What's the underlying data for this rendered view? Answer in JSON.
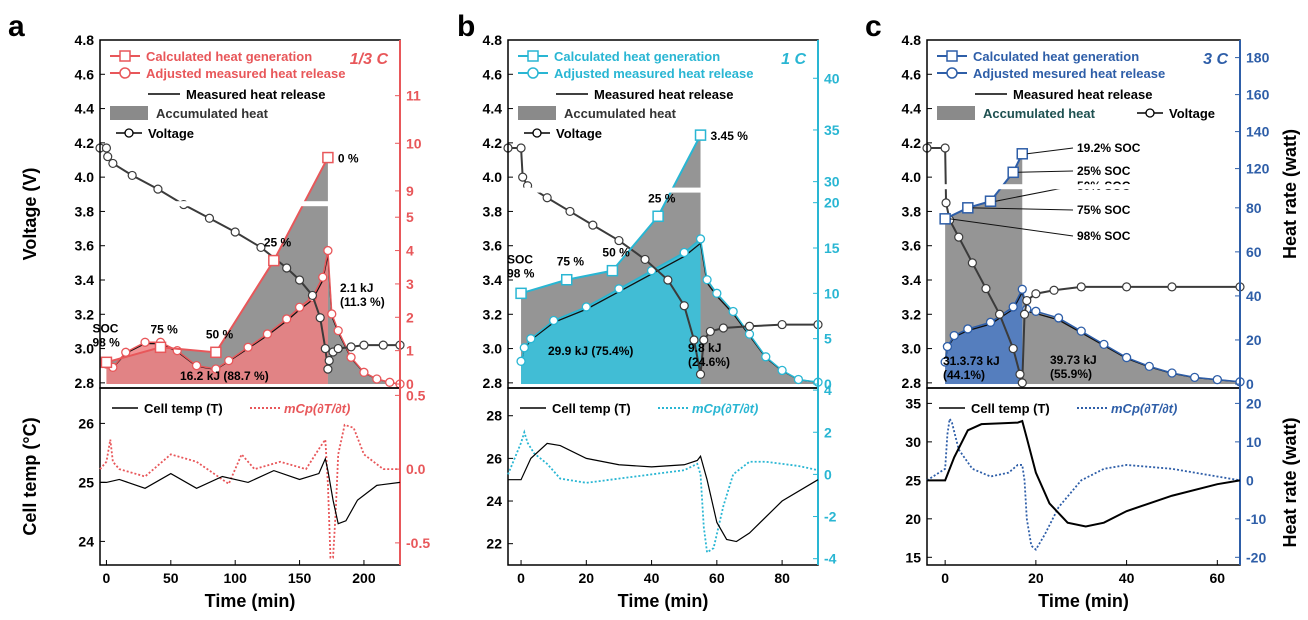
{
  "colors": {
    "a": "#e8575a",
    "a_fill": "#ef8082",
    "b": "#29b6d3",
    "b_fill": "#33c4e0",
    "c": "#2e5ea8",
    "c_fill": "#4a7ac6",
    "gray": "#8a8a8a",
    "gray_dark": "#3b3b3b"
  },
  "chart_data": [
    {
      "panel": "a",
      "type": "line",
      "rate_label": "1/3 C",
      "xlabel": "Time (min)",
      "xlim": [
        -5,
        228
      ],
      "xticks": [
        "0",
        "50",
        "100",
        "150",
        "200"
      ],
      "top": {
        "ylabel_left": "Voltage (V)",
        "ylim_left": [
          2.77,
          4.8
        ],
        "yticks_left": [
          "2.8",
          "3.0",
          "3.2",
          "3.4",
          "3.6",
          "3.8",
          "4.0",
          "4.2",
          "4.4",
          "4.6",
          "4.8"
        ],
        "yticks_right": [
          "0",
          "1",
          "2",
          "3",
          "4",
          "5",
          "9",
          "10",
          "11"
        ],
        "legend": [
          "Calculated heat generation",
          "Adjusted measured heat release",
          "Measured heat release",
          "Accumulated heat",
          "Voltage"
        ],
        "voltage": {
          "x": [
            -5,
            0,
            1,
            5,
            20,
            40,
            60,
            80,
            100,
            120,
            140,
            150,
            160,
            166,
            170,
            172,
            173,
            176,
            180,
            190,
            200,
            215,
            228
          ],
          "y": [
            4.17,
            4.17,
            4.12,
            4.08,
            4.01,
            3.93,
            3.84,
            3.76,
            3.68,
            3.59,
            3.47,
            3.4,
            3.31,
            3.18,
            3.0,
            2.88,
            2.93,
            2.98,
            3.0,
            3.01,
            3.02,
            3.02,
            3.02
          ]
        },
        "calculated_heat": {
          "x": [
            0,
            42,
            85,
            130,
            172
          ],
          "y": [
            0.65,
            1.1,
            0.95,
            3.7,
            9.7
          ],
          "labels": [
            "SOC\n98 %",
            "75 %",
            "50 %",
            "25 %",
            "0 %"
          ]
        },
        "adjusted_measured_heat": {
          "x": [
            0,
            5,
            15,
            30,
            42,
            55,
            70,
            85,
            95,
            110,
            125,
            140,
            150,
            160,
            168,
            172,
            175,
            180,
            190,
            200,
            210,
            220,
            228
          ],
          "y": [
            0.6,
            0.5,
            0.95,
            1.25,
            1.25,
            1.0,
            0.55,
            0.45,
            0.7,
            1.1,
            1.5,
            1.95,
            2.3,
            2.6,
            3.2,
            4.0,
            2.1,
            1.6,
            0.8,
            0.35,
            0.15,
            0.05,
            0.0
          ]
        },
        "annotations": [
          "16.2 kJ (88.7 %)",
          "2.1 kJ\n(11.3 %)"
        ]
      },
      "bottom": {
        "ylabel_left": "Cell temp (°C)",
        "ylim_left": [
          23.6,
          26.6
        ],
        "yticks_left": [
          "24",
          "25",
          "26"
        ],
        "ylim_right": [
          -0.65,
          0.55
        ],
        "yticks_right": [
          "-0.5",
          "0.0",
          "0.5"
        ],
        "legend": [
          "Cell temp (T)",
          "mCp(∂T/∂t)"
        ],
        "cell_temp": {
          "x": [
            -5,
            0,
            10,
            30,
            50,
            70,
            90,
            110,
            130,
            150,
            165,
            170,
            172,
            176,
            180,
            186,
            195,
            210,
            228
          ],
          "y": [
            25.0,
            25.0,
            25.05,
            24.9,
            25.15,
            24.9,
            25.1,
            25.0,
            25.2,
            25.05,
            25.15,
            25.4,
            25.2,
            24.7,
            24.3,
            24.35,
            24.7,
            24.95,
            25.0
          ]
        },
        "heat_rate": {
          "x": [
            -5,
            0,
            3,
            5,
            10,
            30,
            50,
            70,
            95,
            105,
            115,
            135,
            155,
            166,
            170,
            172,
            174,
            176,
            178,
            180,
            185,
            192,
            200,
            215,
            228
          ],
          "y": [
            0.0,
            0.05,
            0.2,
            0.05,
            0.0,
            -0.05,
            0.1,
            0.05,
            -0.1,
            0.1,
            0.0,
            0.05,
            0.0,
            0.15,
            0.2,
            -0.1,
            -0.6,
            -0.6,
            -0.3,
            0.1,
            0.3,
            0.28,
            0.1,
            0.0,
            0.0
          ]
        }
      }
    },
    {
      "panel": "b",
      "type": "line",
      "rate_label": "1 C",
      "xlabel": "Time (min)",
      "xlim": [
        -4,
        91
      ],
      "xticks": [
        "0",
        "20",
        "40",
        "60",
        "80"
      ],
      "top": {
        "ylabel_left": "",
        "ylim_left": [
          2.77,
          4.8
        ],
        "yticks_left": [
          "2.8",
          "3.0",
          "3.2",
          "3.4",
          "3.6",
          "3.8",
          "4.0",
          "4.2",
          "4.4",
          "4.6",
          "4.8"
        ],
        "yticks_right": [
          "0",
          "5",
          "10",
          "15",
          "20",
          "30",
          "35",
          "40"
        ],
        "legend": [
          "Calculated heat generation",
          "Adjusted measured heat release",
          "Measured heat release",
          "Accumulated heat",
          "Voltage"
        ],
        "voltage": {
          "x": [
            -4,
            0,
            0.5,
            2,
            8,
            15,
            22,
            30,
            38,
            45,
            50,
            53,
            55,
            56,
            58,
            62,
            70,
            80,
            91
          ],
          "y": [
            4.17,
            4.17,
            4.0,
            3.95,
            3.88,
            3.8,
            3.72,
            3.63,
            3.52,
            3.4,
            3.25,
            3.05,
            2.85,
            3.05,
            3.1,
            3.12,
            3.13,
            3.14,
            3.14
          ]
        },
        "calculated_heat": {
          "x": [
            0,
            14,
            28,
            42,
            55
          ],
          "y": [
            10,
            11.5,
            12.5,
            18.5,
            34.5
          ],
          "labels": [
            "SOC\n98 %",
            "75 %",
            "50 %",
            "25 %",
            "3.45 %"
          ]
        },
        "adjusted_measured_heat": {
          "x": [
            0,
            1,
            3,
            10,
            20,
            30,
            40,
            50,
            55,
            57,
            60,
            65,
            70,
            75,
            80,
            85,
            91
          ],
          "y": [
            2.5,
            4.0,
            5.0,
            7.0,
            8.5,
            10.5,
            12.5,
            14.5,
            16.0,
            11.5,
            10.0,
            8.0,
            5.5,
            3.0,
            1.5,
            0.5,
            0.2
          ]
        },
        "annotations": [
          "29.9 kJ (75.4%)",
          "9.8 kJ\n(24.6%)"
        ]
      },
      "bottom": {
        "ylabel_left": "",
        "ylim_left": [
          21,
          29.3
        ],
        "yticks_left": [
          "22",
          "24",
          "26",
          "28"
        ],
        "ylim_right": [
          -4.3,
          4.1
        ],
        "yticks_right": [
          "-4",
          "-2",
          "0",
          "2",
          "4"
        ],
        "legend": [
          "Cell temp (T)",
          "mCp(∂T/∂t)"
        ],
        "cell_temp": {
          "x": [
            -4,
            0,
            3,
            8,
            12,
            20,
            30,
            40,
            50,
            54,
            55,
            57,
            60,
            63,
            66,
            70,
            80,
            91
          ],
          "y": [
            25.0,
            25.0,
            26.0,
            26.7,
            26.6,
            26.0,
            25.7,
            25.6,
            25.7,
            25.9,
            26.1,
            25.0,
            23.0,
            22.2,
            22.1,
            22.5,
            24.0,
            25.0
          ]
        },
        "heat_rate": {
          "x": [
            -4,
            0,
            1,
            2,
            4,
            8,
            12,
            20,
            30,
            40,
            50,
            54,
            55,
            56,
            57,
            59,
            62,
            65,
            70,
            75,
            85,
            91
          ],
          "y": [
            0.0,
            1.5,
            2.0,
            1.5,
            1.0,
            0.5,
            -0.2,
            -0.4,
            -0.2,
            0.0,
            0.2,
            0.5,
            0.0,
            -2.5,
            -3.7,
            -3.5,
            -1.5,
            0.0,
            0.6,
            0.6,
            0.4,
            0.2
          ]
        }
      }
    },
    {
      "panel": "c",
      "type": "line",
      "rate_label": "3 C",
      "xlabel": "Time (min)",
      "xlim": [
        -4,
        65
      ],
      "xticks": [
        "0",
        "20",
        "40",
        "60"
      ],
      "top": {
        "ylabel_left": "",
        "ylabel_right": "Heat rate (watt)",
        "ylim_left": [
          2.77,
          4.8
        ],
        "yticks_left": [
          "2.8",
          "3.0",
          "3.2",
          "3.4",
          "3.6",
          "3.8",
          "4.0",
          "4.2",
          "4.4",
          "4.6",
          "4.8"
        ],
        "yticks_right": [
          "0",
          "20",
          "40",
          "60",
          "80",
          "120",
          "140",
          "160",
          "180"
        ],
        "legend": [
          "Calculated heat generation",
          "Adjusted mesured heat release",
          "Measured heat release",
          "Accumulated heat",
          "Voltage"
        ],
        "voltage": {
          "x": [
            -4,
            0,
            0.2,
            1,
            3,
            6,
            9,
            12,
            15,
            16.5,
            17,
            17.5,
            18,
            20,
            24,
            30,
            40,
            50,
            65
          ],
          "y": [
            4.17,
            4.17,
            3.85,
            3.75,
            3.65,
            3.5,
            3.35,
            3.2,
            3.0,
            2.85,
            2.8,
            3.2,
            3.28,
            3.32,
            3.34,
            3.36,
            3.36,
            3.36,
            3.36
          ]
        },
        "calculated_heat": {
          "x": [
            0,
            5,
            10,
            15,
            17
          ],
          "y": [
            75,
            80,
            83,
            118,
            128
          ],
          "labels": [
            "98% SOC",
            "75% SOC",
            "50% SOC",
            "25% SOC",
            "19.2% SOC"
          ]
        },
        "adjusted_measured_heat": {
          "x": [
            0,
            0.5,
            2,
            5,
            10,
            15,
            17,
            18,
            20,
            25,
            30,
            35,
            40,
            45,
            50,
            55,
            60,
            65
          ],
          "y": [
            10,
            17,
            22,
            25,
            28,
            35,
            43,
            34,
            33,
            30,
            24,
            18,
            12,
            8,
            5,
            3,
            2,
            1
          ]
        },
        "annotations": [
          "31.3.73 kJ\n(44.1%)",
          "39.73 kJ\n(55.9%)"
        ]
      },
      "bottom": {
        "ylabel_left": "",
        "ylabel_right": "Heat rate (watt)",
        "ylim_left": [
          14,
          37
        ],
        "yticks_left": [
          "15",
          "20",
          "25",
          "30",
          "35"
        ],
        "ylim_right": [
          -22,
          24
        ],
        "yticks_right": [
          "-20",
          "-10",
          "0",
          "10",
          "20"
        ],
        "legend": [
          "Cell temp (T)",
          "mCp(∂T/∂t)"
        ],
        "cell_temp": {
          "x": [
            -4,
            0,
            2,
            5,
            8,
            12,
            16,
            17,
            18,
            20,
            23,
            27,
            31,
            35,
            40,
            50,
            60,
            65
          ],
          "y": [
            25,
            25,
            28,
            31.5,
            32.3,
            32.4,
            32.5,
            32.7,
            30.5,
            26,
            22,
            19.5,
            19.0,
            19.5,
            21.0,
            23.0,
            24.5,
            25.0
          ]
        },
        "heat_rate": {
          "x": [
            -4,
            0,
            0.5,
            1,
            1.5,
            3,
            6,
            10,
            14,
            16,
            17,
            17.5,
            18,
            19,
            20,
            22,
            25,
            30,
            35,
            40,
            50,
            60,
            65
          ],
          "y": [
            0,
            3,
            12,
            16,
            15,
            8,
            3,
            1,
            2,
            4,
            4,
            0,
            -10,
            -17,
            -18,
            -14,
            -7,
            0,
            3,
            4,
            3,
            1,
            0
          ]
        }
      }
    }
  ]
}
